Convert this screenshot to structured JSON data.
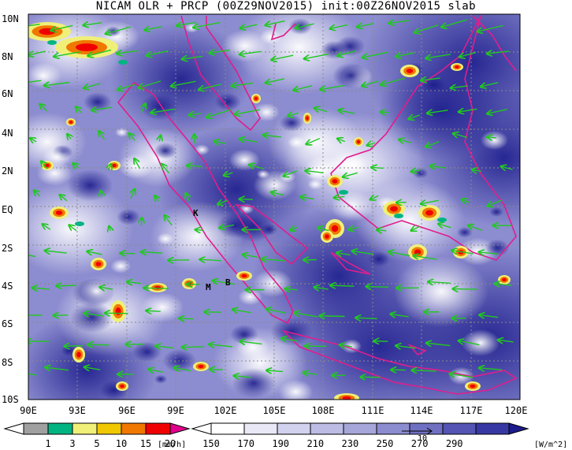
{
  "title": "NICAM OLR + PRCP (00Z29NOV2015) init:00Z26NOV2015 slab",
  "y_axis_labels": [
    "10N",
    "8N",
    "6N",
    "4N",
    "2N",
    "EQ",
    "2S",
    "4S",
    "6S",
    "8S",
    "10S"
  ],
  "x_axis_labels": [
    "90E",
    "93E",
    "96E",
    "99E",
    "102E",
    "105E",
    "108E",
    "111E",
    "114E",
    "117E",
    "120E"
  ],
  "place_labels": [
    "K",
    "M",
    "B"
  ],
  "vector_reference_label": "10",
  "precip_colorbar": {
    "ticks": [
      "1",
      "3",
      "5",
      "10",
      "15",
      "20"
    ],
    "unit": "[mm/h]",
    "colors": [
      "#a0a0a0",
      "#00b482",
      "#f0f078",
      "#f0c800",
      "#f07800",
      "#f00000",
      "#e0008c"
    ]
  },
  "olr_colorbar": {
    "ticks": [
      "150",
      "170",
      "190",
      "210",
      "230",
      "250",
      "270",
      "290"
    ],
    "unit": "[W/m^2]",
    "colors": [
      "#ffffff",
      "#e8e8f6",
      "#d2d2ee",
      "#bcbce4",
      "#a6a6da",
      "#8c8cd0",
      "#7070c2",
      "#5454b4",
      "#3838a4",
      "#1c1c8c"
    ]
  },
  "colors": {
    "wind_vector": "#20c820",
    "coastline": "#e01e8c",
    "grid": "#8a8a8a"
  }
}
